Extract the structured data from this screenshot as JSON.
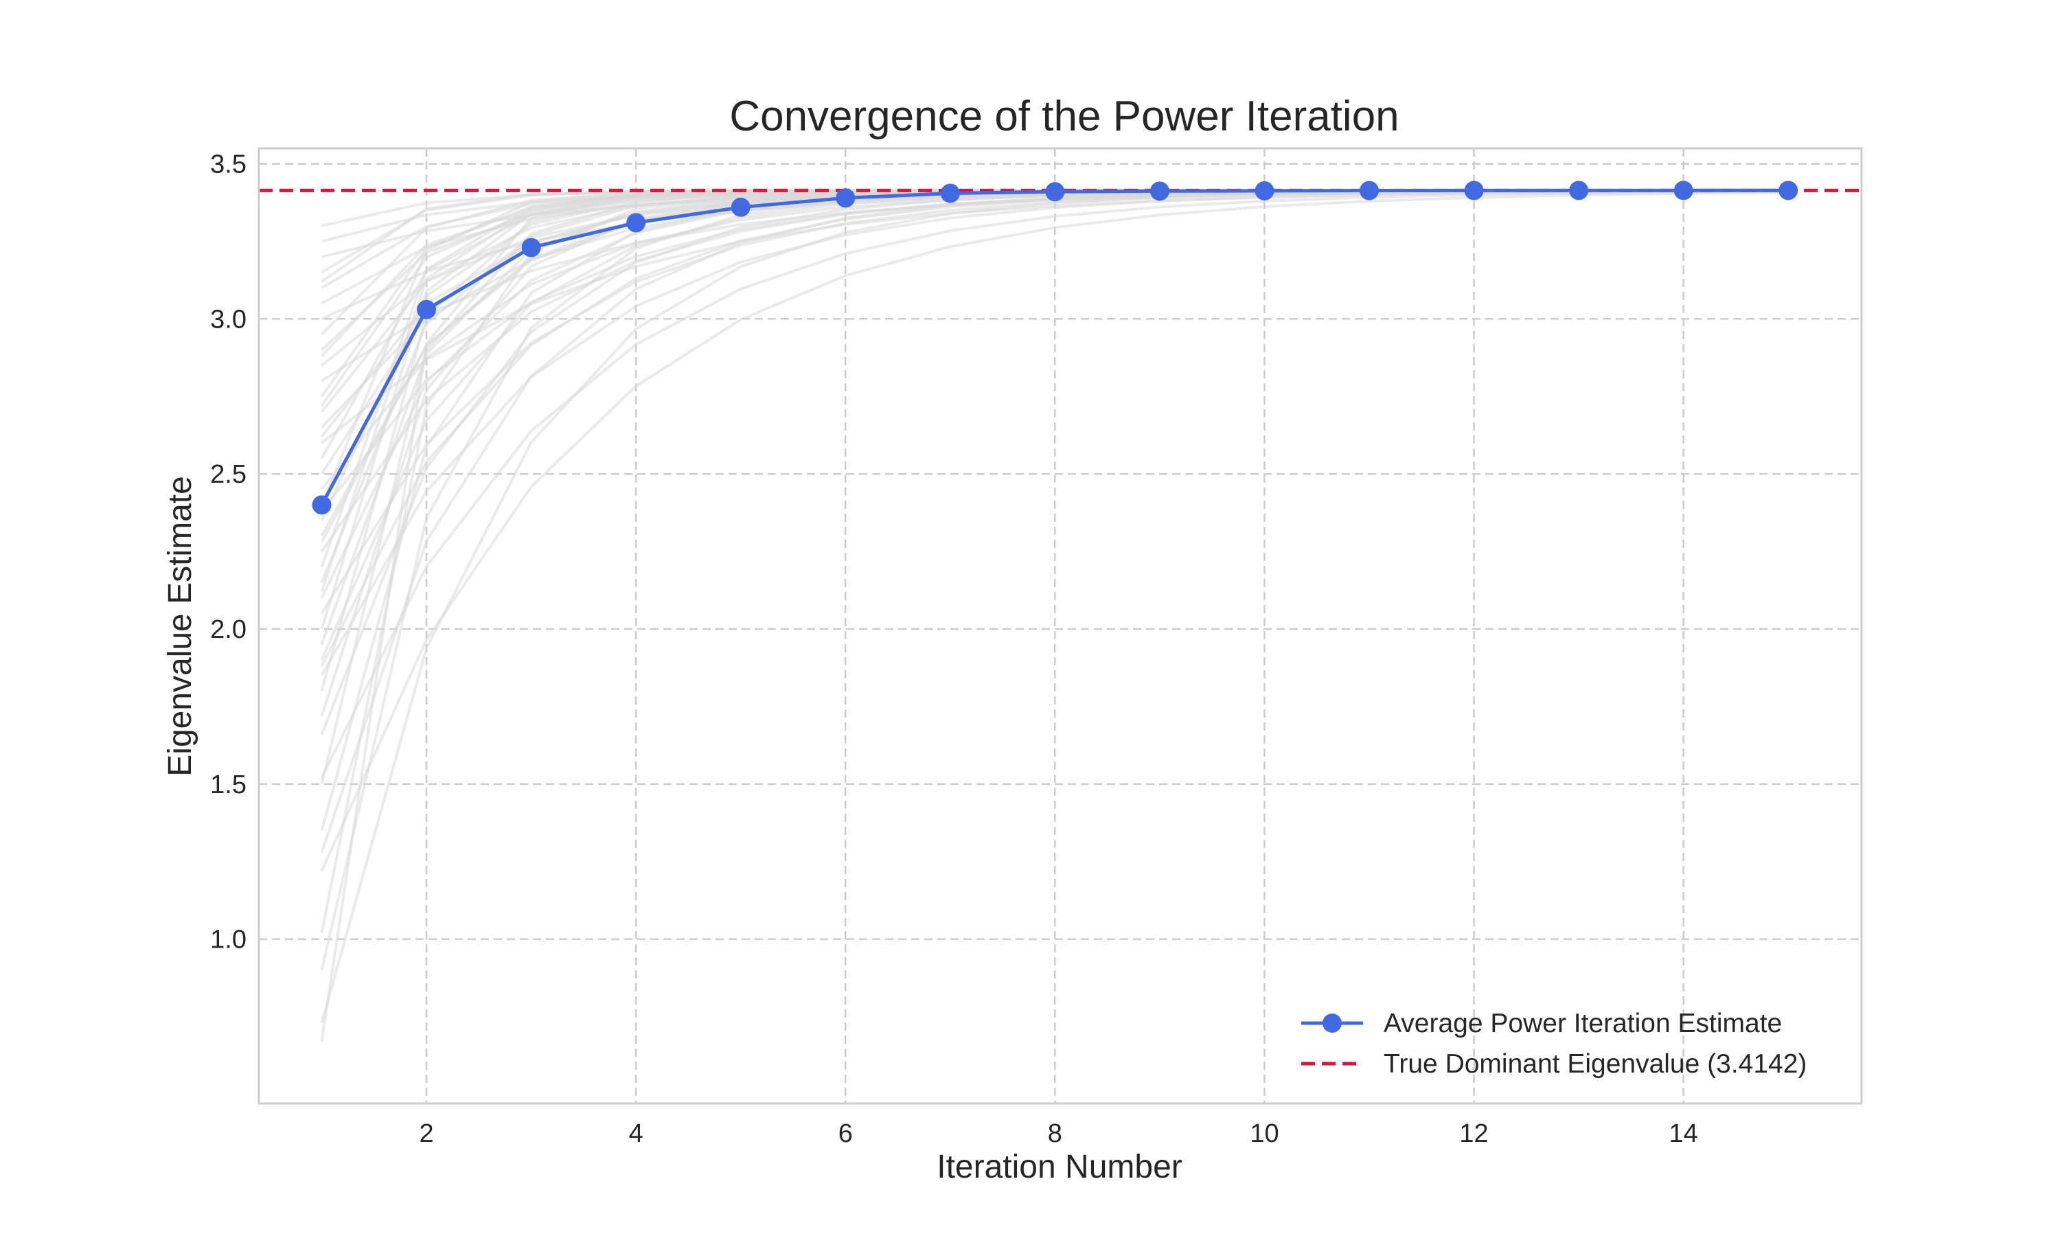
{
  "chart_data": {
    "type": "line",
    "title": "Convergence of the Power Iteration",
    "xlabel": "Iteration Number",
    "ylabel": "Eigenvalue Estimate",
    "xlim": [
      0.4,
      15.7
    ],
    "ylim": [
      0.47,
      3.55
    ],
    "xticks": [
      2,
      4,
      6,
      8,
      10,
      12,
      14
    ],
    "xtick_labels": [
      "2",
      "4",
      "6",
      "8",
      "10",
      "12",
      "14"
    ],
    "yticks": [
      1.0,
      1.5,
      2.0,
      2.5,
      3.0,
      3.5
    ],
    "ytick_labels": [
      "1.0",
      "1.5",
      "2.0",
      "2.5",
      "3.0",
      "3.5"
    ],
    "grid": true,
    "legend_position": "lower-right",
    "colors": {
      "average": "#4169e1",
      "true_value": "#dc143c",
      "trials": "#d9d9d9",
      "grid": "#cccccc"
    },
    "x": [
      1,
      2,
      3,
      4,
      5,
      6,
      7,
      8,
      9,
      10,
      11,
      12,
      13,
      14,
      15
    ],
    "series": [
      {
        "name": "Average Power Iteration Estimate",
        "style": "solid line with circle markers",
        "values": [
          2.4,
          3.03,
          3.23,
          3.31,
          3.36,
          3.39,
          3.405,
          3.41,
          3.412,
          3.413,
          3.4138,
          3.414,
          3.4141,
          3.4142,
          3.4142
        ]
      },
      {
        "name": "True Dominant Eigenvalue (3.4142)",
        "style": "dashed horizontal line",
        "value": 3.4142
      }
    ],
    "trial_starting_values": [
      0.67,
      0.73,
      0.9,
      1.02,
      1.22,
      1.28,
      1.35,
      1.5,
      1.52,
      1.66,
      1.72,
      1.8,
      1.85,
      1.9,
      1.95,
      2.0,
      2.05,
      2.1,
      2.15,
      2.2,
      2.25,
      2.3,
      2.35,
      2.4,
      2.45,
      2.5,
      2.55,
      2.6,
      2.65,
      2.7,
      2.75,
      2.8,
      2.85,
      2.9,
      2.95,
      3.0,
      3.05,
      3.1,
      3.15,
      3.2,
      3.25,
      3.3,
      2.12,
      2.38,
      2.62,
      2.88,
      3.12,
      1.88,
      2.28,
      2.72
    ]
  }
}
